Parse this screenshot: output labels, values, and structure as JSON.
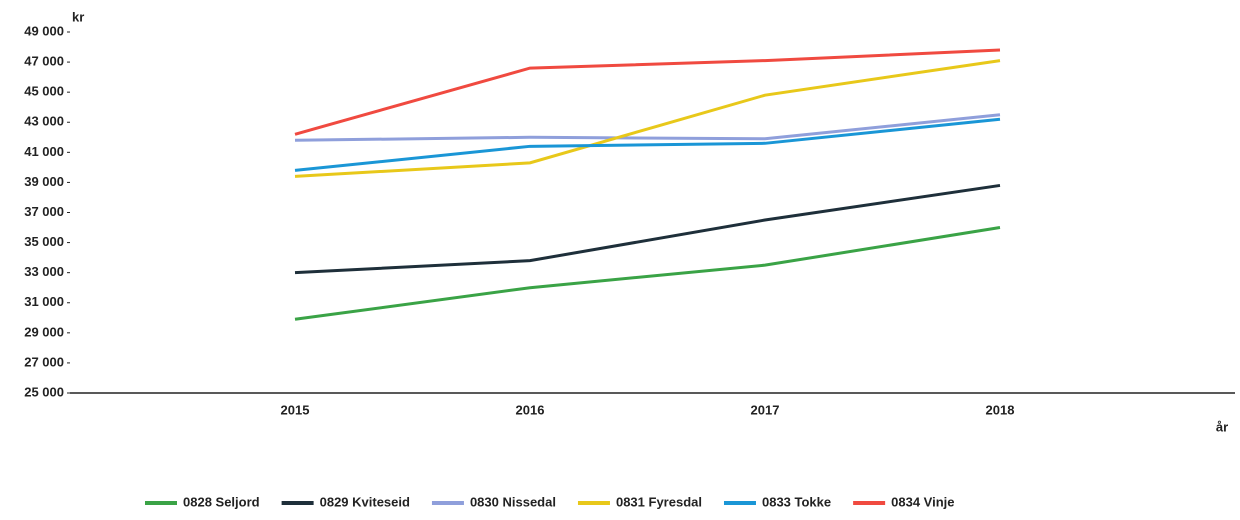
{
  "chart_data": {
    "type": "line",
    "y_label": "kr",
    "x_label": "år",
    "categories": [
      "2015",
      "2016",
      "2017",
      "2018"
    ],
    "series": [
      {
        "name": "0828 Seljord",
        "color": "#3aa346",
        "values": [
          29900,
          32000,
          33500,
          36000
        ]
      },
      {
        "name": "0829 Kviteseid",
        "color": "#1e2f3a",
        "values": [
          33000,
          33800,
          36500,
          38800
        ]
      },
      {
        "name": "0830 Nissedal",
        "color": "#8f9fdb",
        "values": [
          41800,
          42000,
          41900,
          43500
        ]
      },
      {
        "name": "0831 Fyresdal",
        "color": "#e8c81a",
        "values": [
          39400,
          40300,
          44800,
          47100
        ]
      },
      {
        "name": "0833 Tokke",
        "color": "#1a96d6",
        "values": [
          39800,
          41400,
          41600,
          43200
        ]
      },
      {
        "name": "0834 Vinje",
        "color": "#f04a40",
        "values": [
          42200,
          46600,
          47100,
          47800
        ]
      }
    ],
    "ylim": [
      25000,
      49000
    ],
    "yticks": [
      {
        "value": 25000,
        "label": "25 000"
      },
      {
        "value": 27000,
        "label": "27 000"
      },
      {
        "value": 29000,
        "label": "29 000"
      },
      {
        "value": 31000,
        "label": "31 000"
      },
      {
        "value": 33000,
        "label": "33 000"
      },
      {
        "value": 35000,
        "label": "35 000"
      },
      {
        "value": 37000,
        "label": "37 000"
      },
      {
        "value": 39000,
        "label": "39 000"
      },
      {
        "value": 41000,
        "label": "41 000"
      },
      {
        "value": 43000,
        "label": "43 000"
      },
      {
        "value": 45000,
        "label": "45 000"
      },
      {
        "value": 47000,
        "label": "47 000"
      },
      {
        "value": 49000,
        "label": "49 000"
      }
    ],
    "legend": "bottom"
  }
}
